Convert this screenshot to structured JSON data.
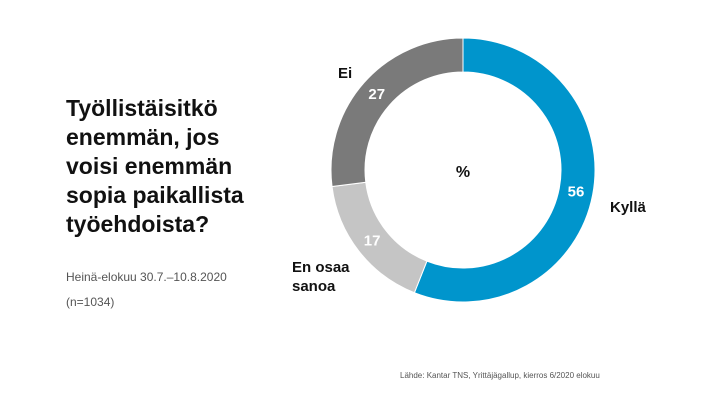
{
  "chart_data": {
    "type": "pie",
    "title": "Työllistäisitkö\nenemmän, jos\nvoisi enemmän\nsopia paikallista\ntyöehdoista?",
    "unit": "%",
    "categories": [
      "Kyllä",
      "En osaa\nsanoa",
      "Ei"
    ],
    "values": [
      56,
      17,
      27
    ],
    "colors": [
      "#0095cc",
      "#c5c5c5",
      "#7a7a7a"
    ],
    "donut": true
  },
  "meta": {
    "period": "Heinä-elokuu 30.7.–10.8.2020",
    "sample": "(n=1034)",
    "source": "Lähde: Kantar TNS, Yrittäjägallup, kierros 6/2020 elokuu"
  }
}
